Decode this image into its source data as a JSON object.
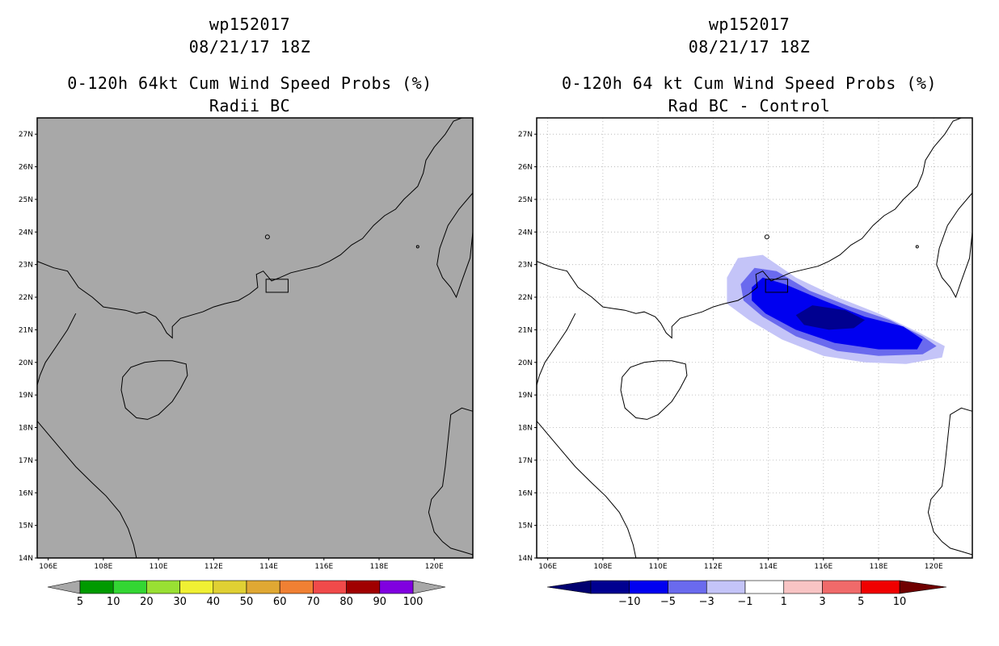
{
  "panels": {
    "left": {
      "storm_id": "wp152017",
      "datetime": "08/21/17 18Z",
      "product_title": "0-120h 64kt Cum Wind Speed Probs (%)",
      "subtitle": "Radii BC",
      "colorbar": {
        "labels": [
          "5",
          "10",
          "20",
          "30",
          "40",
          "50",
          "60",
          "70",
          "80",
          "90",
          "100"
        ],
        "colors": [
          "#009a00",
          "#33d633",
          "#99e033",
          "#f0f033",
          "#e0d033",
          "#e0a833",
          "#f08033",
          "#f04a4a",
          "#a00000",
          "#8000e0"
        ],
        "end_color": "#a8a8a8"
      }
    },
    "right": {
      "storm_id": "wp152017",
      "datetime": "08/21/17 18Z",
      "product_title": "0-120h 64 kt Cum Wind Speed Probs (%)",
      "subtitle": "Rad BC - Control",
      "colorbar": {
        "labels": [
          "−10",
          "−5",
          "−3",
          "−1",
          "1",
          "3",
          "5",
          "10"
        ],
        "colors": [
          "#000090",
          "#0000f0",
          "#6a6aee",
          "#c4c4f8",
          "#ffffff",
          "#f8c4c4",
          "#f06a6a",
          "#f00000"
        ],
        "end_left_color": "#000070",
        "end_right_color": "#700000"
      }
    }
  },
  "map": {
    "lat_labels": [
      "27N",
      "26N",
      "25N",
      "24N",
      "23N",
      "22N",
      "21N",
      "20N",
      "19N",
      "18N",
      "17N",
      "16N",
      "15N",
      "14N"
    ],
    "lon_labels": [
      "106E",
      "108E",
      "110E",
      "112E",
      "114E",
      "116E",
      "118E",
      "120E"
    ],
    "left_background": "#a8a8a8",
    "right_background": "#ffffff"
  }
}
